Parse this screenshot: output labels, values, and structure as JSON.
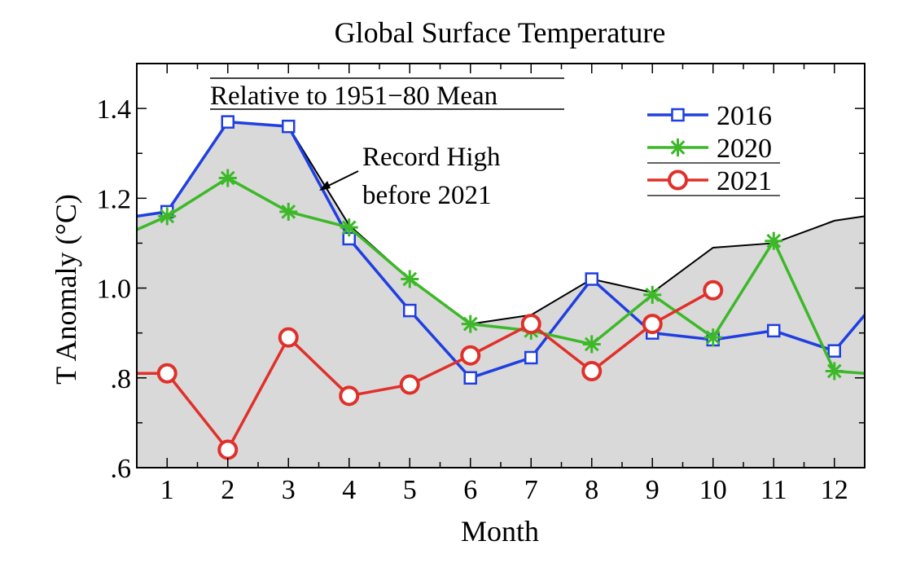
{
  "chart_data": {
    "type": "line",
    "title": "Global Surface Temperature",
    "subtitle": "Relative to 1951−80 Mean",
    "xlabel": "Month",
    "ylabel": "T Anomaly (°C)",
    "xlim": [
      0.5,
      12.5
    ],
    "ylim": [
      0.6,
      1.5
    ],
    "x_ticks": [
      1,
      2,
      3,
      4,
      5,
      6,
      7,
      8,
      9,
      10,
      11,
      12
    ],
    "y_ticks": [
      {
        "value": 0.6,
        "label": ".6"
      },
      {
        "value": 0.8,
        "label": ".8"
      },
      {
        "value": 1.0,
        "label": "1.0"
      },
      {
        "value": 1.2,
        "label": "1.2"
      },
      {
        "value": 1.4,
        "label": "1.4"
      }
    ],
    "record_high": {
      "label": [
        "Record High",
        "before 2021"
      ],
      "x": [
        0.5,
        1,
        2,
        3,
        4,
        5,
        6,
        7,
        8,
        9,
        10,
        11,
        12,
        12.5
      ],
      "values": [
        1.16,
        1.17,
        1.37,
        1.36,
        1.14,
        1.02,
        0.92,
        0.94,
        1.02,
        0.99,
        1.09,
        1.1,
        1.15,
        1.16
      ],
      "fill_color": "#d9d9d9",
      "line_color": "#000000"
    },
    "series": [
      {
        "name": "2016",
        "color": "#1f3fe0",
        "marker": "square",
        "x": [
          0.5,
          1,
          2,
          3,
          4,
          5,
          6,
          7,
          8,
          9,
          10,
          11,
          12,
          12.5
        ],
        "values": [
          1.16,
          1.17,
          1.37,
          1.36,
          1.11,
          0.95,
          0.8,
          0.845,
          1.02,
          0.9,
          0.885,
          0.905,
          0.86,
          0.94
        ]
      },
      {
        "name": "2020",
        "color": "#3cb828",
        "marker": "asterisk",
        "x": [
          0.5,
          1,
          2,
          3,
          4,
          5,
          6,
          7,
          8,
          9,
          10,
          11,
          12,
          12.5
        ],
        "values": [
          1.13,
          1.16,
          1.245,
          1.17,
          1.135,
          1.02,
          0.92,
          0.905,
          0.875,
          0.985,
          0.89,
          1.105,
          0.815,
          0.81
        ]
      },
      {
        "name": "2021",
        "color": "#e0302a",
        "marker": "circle",
        "x": [
          0.5,
          1,
          2,
          3,
          4,
          5,
          6,
          7,
          8,
          9,
          10
        ],
        "values": [
          0.81,
          0.81,
          0.64,
          0.89,
          0.76,
          0.785,
          0.85,
          0.92,
          0.815,
          0.92,
          0.995
        ]
      }
    ],
    "legend_position": "top-right",
    "grid": false
  }
}
